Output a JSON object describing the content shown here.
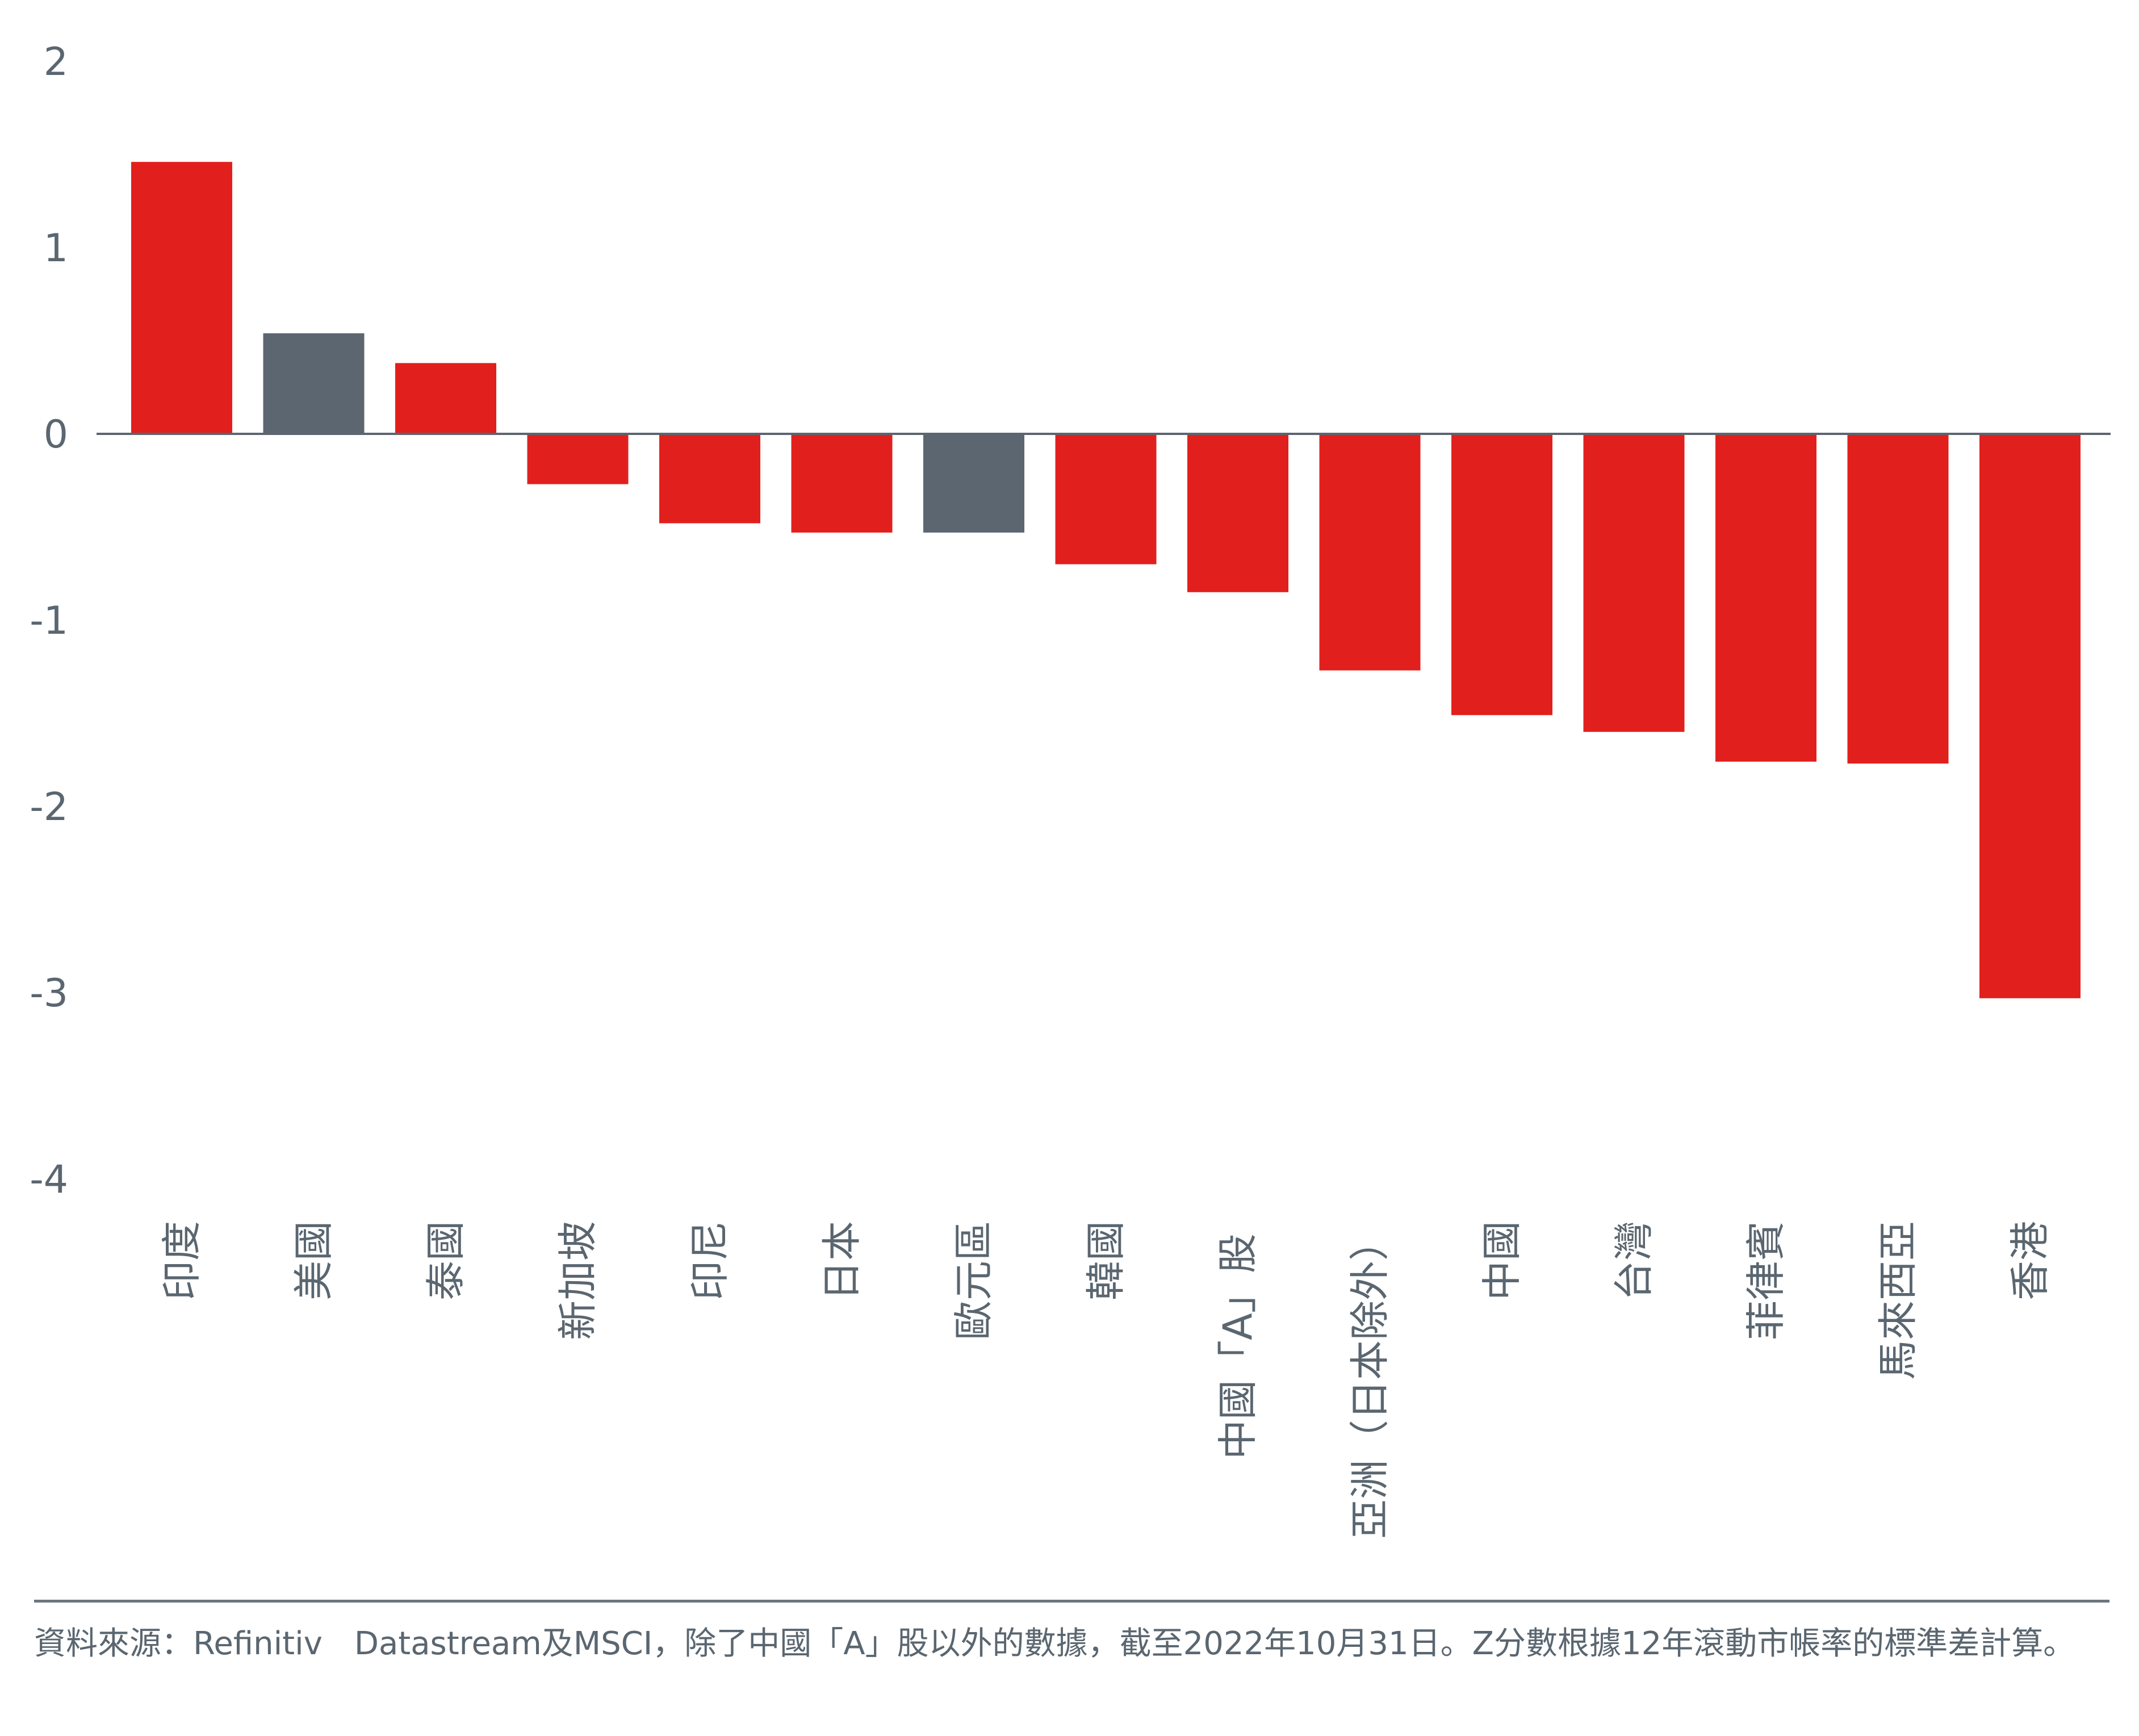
{
  "chart_data": {
    "type": "bar",
    "categories": [
      "印度",
      "美國",
      "泰國",
      "新加坡",
      "印尼",
      "日本",
      "歐元區",
      "韓國",
      "中國「A」股",
      "亞洲（日本除外）",
      "中國",
      "台灣",
      "菲律賓",
      "馬來西亞",
      "香港"
    ],
    "values": [
      1.46,
      0.54,
      0.38,
      -0.27,
      -0.48,
      -0.53,
      -0.53,
      -0.7,
      -0.85,
      -1.27,
      -1.51,
      -1.6,
      -1.76,
      -1.77,
      -3.03
    ],
    "highlight": [
      "美國",
      "歐元區"
    ],
    "ylim": [
      -4,
      2
    ],
    "yticks": [
      "2",
      "1",
      "0",
      "-1",
      "-2",
      "-3",
      "-4"
    ],
    "xlabel": "",
    "ylabel": "",
    "colors": {
      "bar": "#e1201e",
      "highlight_bar": "#5c6670",
      "axis": "#5c6670",
      "text": "#5a6670"
    }
  },
  "footer": {
    "source_note": "資料來源：Refinitiv　Datastream及MSCI，除了中國「A」股以外的數據，截至2022年10月31日。Z分數根據12年滾動市帳率的標準差計算。"
  }
}
